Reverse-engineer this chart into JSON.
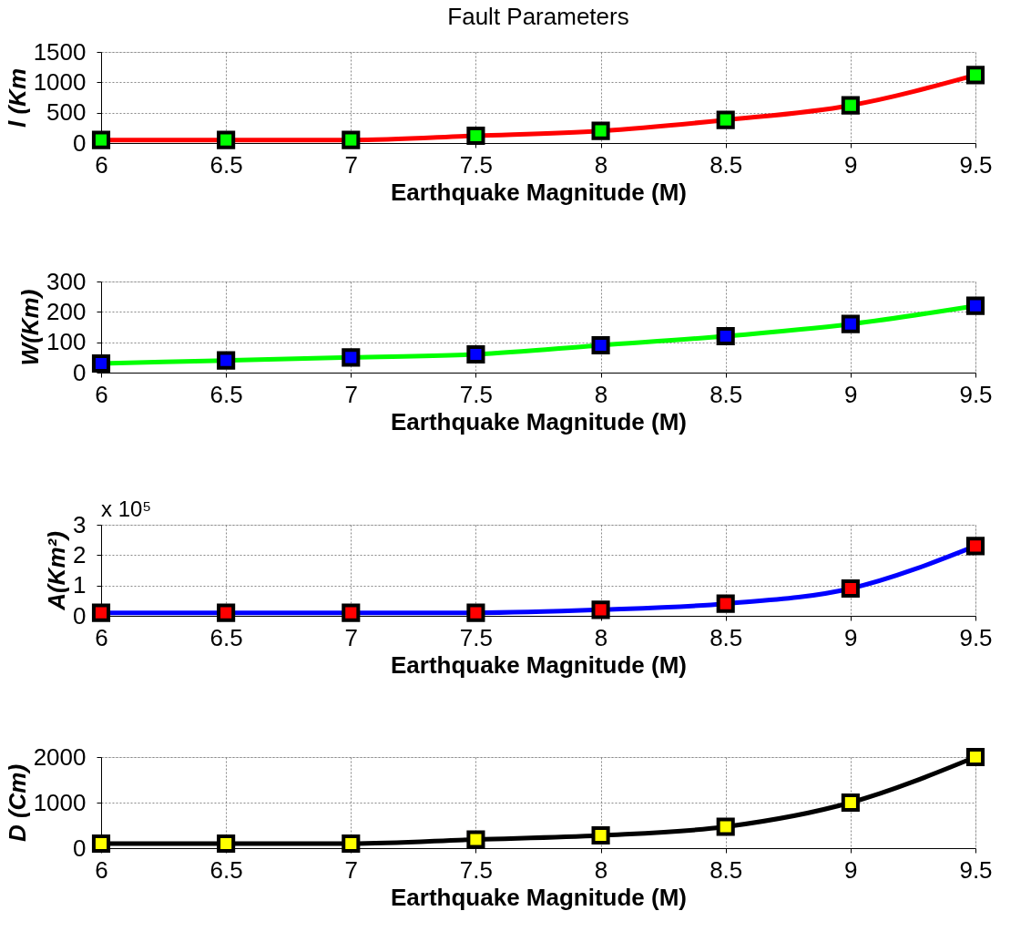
{
  "chart_data": [
    {
      "type": "line",
      "title": "Fault Parameters",
      "xlabel": "Earthquake Magnitude (M)",
      "ylabel": "l (Km",
      "x": [
        6,
        6.5,
        7,
        7.5,
        8,
        8.5,
        9,
        9.5
      ],
      "series": [
        {
          "color": "#ff0000",
          "colors": [
            "#00ff00",
            "#00ff00",
            "#00ff00",
            "#00ff00",
            "#00ff00",
            "#00ff00",
            "#00ff00",
            "#00ff00"
          ],
          "values": [
            50,
            50,
            50,
            120,
            200,
            380,
            620,
            1120
          ]
        }
      ],
      "xlim": [
        6,
        9.5
      ],
      "xticks": [
        6,
        6.5,
        7,
        7.5,
        8,
        8.5,
        9,
        9.5
      ],
      "ylim": [
        0,
        1500
      ],
      "yticks": [
        0,
        500,
        1000,
        1500
      ],
      "grid": true,
      "marker": "square",
      "line_style": "solid",
      "legend": false
    },
    {
      "type": "line",
      "xlabel": "Earthquake Magnitude (M)",
      "ylabel": "W(Km)",
      "x": [
        6,
        6.5,
        7,
        7.5,
        8,
        8.5,
        9,
        9.5
      ],
      "series": [
        {
          "color": "#00ff00",
          "colors": [
            "#0000ff",
            "#0000ff",
            "#0000ff",
            "#0000ff",
            "#0000ff",
            "#0000ff",
            "#0000ff",
            "#0000ff"
          ],
          "values": [
            30,
            40,
            50,
            60,
            90,
            120,
            160,
            220
          ]
        }
      ],
      "xlim": [
        6,
        9.5
      ],
      "xticks": [
        6,
        6.5,
        7,
        7.5,
        8,
        8.5,
        9,
        9.5
      ],
      "ylim": [
        0,
        300
      ],
      "yticks": [
        0,
        100,
        200,
        300
      ],
      "grid": true,
      "marker": "square",
      "line_style": "solid",
      "legend": false
    },
    {
      "type": "line",
      "xlabel": "Earthquake Magnitude (M)",
      "ylabel": "A(Km²)",
      "annotations": [
        "x 10⁵"
      ],
      "x": [
        6,
        6.5,
        7,
        7.5,
        8,
        8.5,
        9,
        9.5
      ],
      "series": [
        {
          "color": "#0000ff",
          "colors": [
            "#ff0000",
            "#ff0000",
            "#ff0000",
            "#ff0000",
            "#ff0000",
            "#ff0000",
            "#ff0000",
            "#ff0000"
          ],
          "values": [
            0.1,
            0.1,
            0.1,
            0.1,
            0.2,
            0.4,
            0.9,
            2.3
          ]
        }
      ],
      "xlim": [
        6,
        9.5
      ],
      "xticks": [
        6,
        6.5,
        7,
        7.5,
        8,
        8.5,
        9,
        9.5
      ],
      "ylim": [
        0,
        3
      ],
      "yticks": [
        0,
        1,
        2,
        3
      ],
      "grid": true,
      "marker": "square",
      "line_style": "solid",
      "legend": false
    },
    {
      "type": "line",
      "xlabel": "Earthquake Magnitude (M)",
      "ylabel": "D (Cm)",
      "x": [
        6,
        6.5,
        7,
        7.5,
        8,
        8.5,
        9,
        9.5
      ],
      "series": [
        {
          "color": "#000000",
          "colors": [
            "#ffff00",
            "#ffff00",
            "#ffff00",
            "#ffff00",
            "#ffff00",
            "#ffff00",
            "#ffff00",
            "#ffff00"
          ],
          "values": [
            100,
            100,
            100,
            190,
            280,
            470,
            1000,
            2000
          ]
        }
      ],
      "xlim": [
        6,
        9.5
      ],
      "xticks": [
        6,
        6.5,
        7,
        7.5,
        8,
        8.5,
        9,
        9.5
      ],
      "ylim": [
        0,
        2000
      ],
      "yticks": [
        0,
        1000,
        2000
      ],
      "grid": true,
      "marker": "square",
      "line_style": "solid",
      "legend": false
    }
  ]
}
